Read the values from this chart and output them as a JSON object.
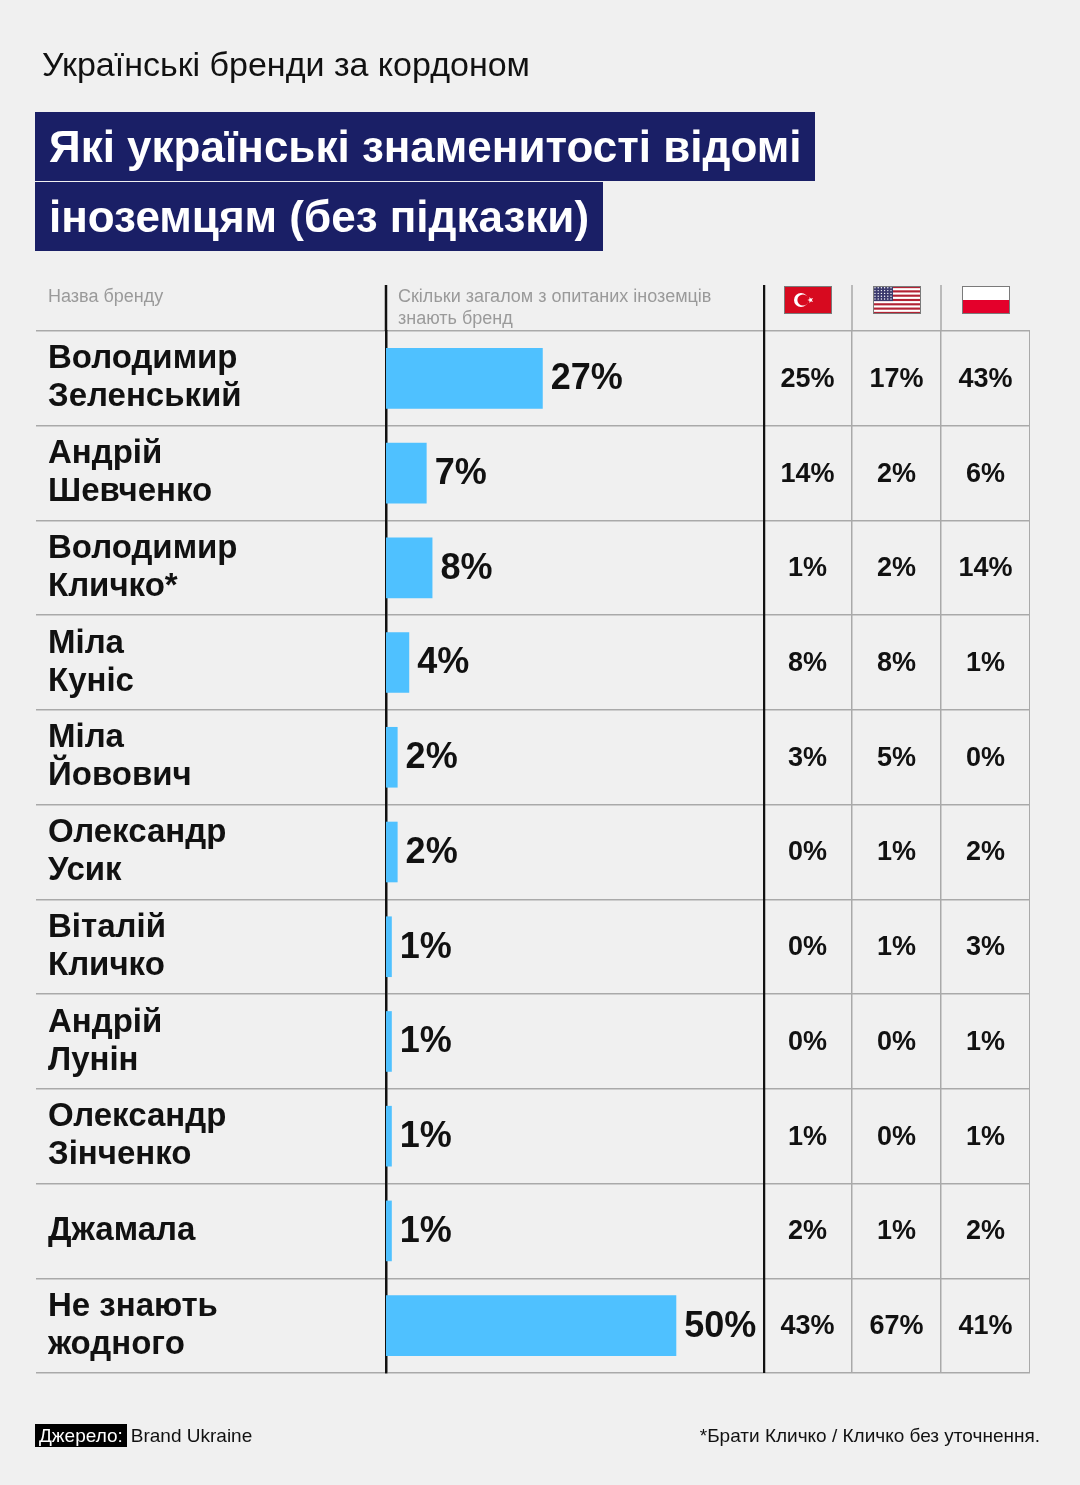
{
  "chart_data": [
    {
      "type": "bar",
      "orientation": "horizontal",
      "subtitle": "Українські бренди за кордоном",
      "title": "Які українські знаменитості відомі іноземцям (без підказки)",
      "ylabel": "Назва бренду",
      "xlabel": "Скільки загалом з опитаних іноземців знають бренд",
      "categories": [
        "Володимир Зеленський",
        "Андрій Шевченко",
        "Володимир Кличко*",
        "Міла Куніс",
        "Міла Йовович",
        "Олександр Усик",
        "Віталій Кличко",
        "Андрій Лунін",
        "Олександр Зінченко",
        "Джамала",
        "Не знають жодного"
      ],
      "values": [
        27,
        7,
        8,
        4,
        2,
        2,
        1,
        1,
        1,
        1,
        50
      ],
      "value_labels": [
        "27%",
        "7%",
        "8%",
        "4%",
        "2%",
        "2%",
        "1%",
        "1%",
        "1%",
        "1%",
        "50%"
      ],
      "color": "#4fc1ff",
      "grid": "y",
      "tick_labels": "y",
      "annotations": [
        "Джерело: Brand Ukraine",
        "*Брати Кличко / Кличко без уточнення."
      ]
    },
    {
      "type": "heatmap",
      "categories": [
        null,
        null,
        null
      ],
      "y_categories": [
        null,
        null,
        null,
        null,
        null,
        null,
        null,
        null,
        null,
        null,
        null
      ],
      "cells": [
        [
          25,
          17,
          43
        ],
        [
          14,
          2,
          6
        ],
        [
          1,
          2,
          14
        ],
        [
          8,
          8,
          1
        ],
        [
          3,
          5,
          0
        ],
        [
          0,
          1,
          2
        ],
        [
          0,
          1,
          3
        ],
        [
          0,
          0,
          1
        ],
        [
          1,
          0,
          1
        ],
        [
          2,
          1,
          2
        ],
        [
          43,
          67,
          41
        ]
      ],
      "cell_labels": [
        [
          "25%",
          "17%",
          "43%"
        ],
        [
          "14%",
          "2%",
          "6%"
        ],
        [
          "1%",
          "2%",
          "14%"
        ],
        [
          "8%",
          "8%",
          "1%"
        ],
        [
          "3%",
          "5%",
          "0%"
        ],
        [
          "0%",
          "1%",
          "2%"
        ],
        [
          "0%",
          "1%",
          "3%"
        ],
        [
          "0%",
          "0%",
          "1%"
        ],
        [
          "1%",
          "0%",
          "1%"
        ],
        [
          "2%",
          "1%",
          "2%"
        ],
        [
          "43%",
          "67%",
          "41%"
        ]
      ],
      "grid": true,
      "tick_labels": false
    }
  ]
}
